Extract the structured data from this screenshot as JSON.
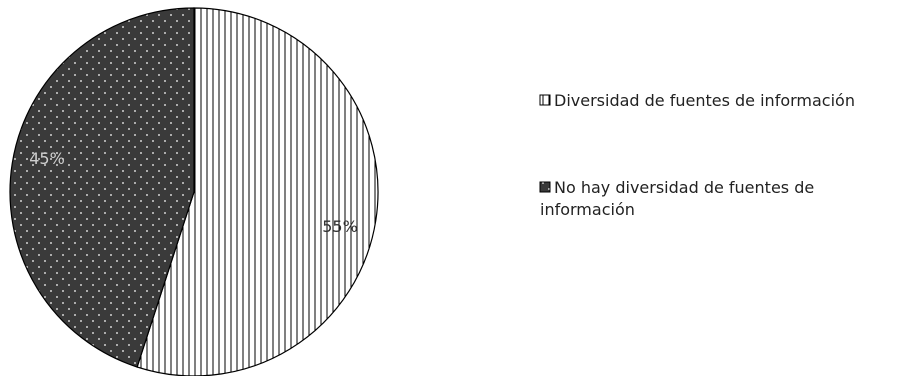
{
  "chart_data": {
    "type": "pie",
    "title": "",
    "slices": [
      {
        "label": "Diversidad de fuentes de información",
        "value": 55,
        "value_label": "55%",
        "fill": "#ffffff",
        "pattern": "vertical-lines"
      },
      {
        "label": "No hay diversidad de fuentes de información",
        "value": 45,
        "value_label": "45%",
        "fill": "#3a3a3a",
        "pattern": "white-dots"
      }
    ],
    "legend": {
      "position": "right",
      "items": [
        [
          "Diversidad de fuentes de información"
        ],
        [
          "No hay diversidad de fuentes de",
          "información"
        ]
      ]
    },
    "start_angle": "12 o'clock",
    "direction": "clockwise"
  }
}
